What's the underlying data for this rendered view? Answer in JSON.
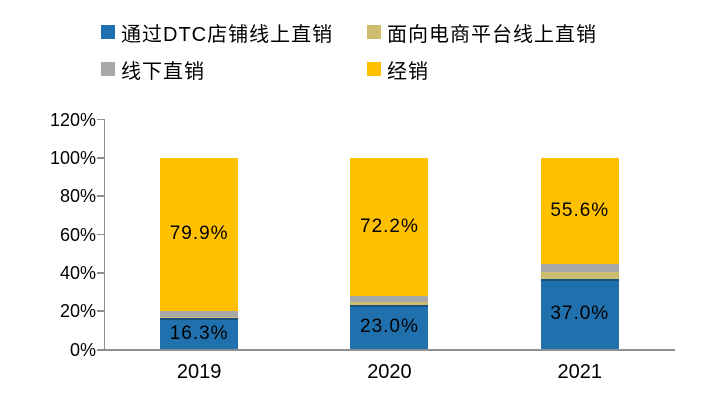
{
  "chart_data": {
    "type": "bar",
    "stacked": true,
    "title": "",
    "categories": [
      "2019",
      "2020",
      "2021"
    ],
    "series": [
      {
        "name": "通过DTC店铺线上直销",
        "color": "#2070ad",
        "values": [
          16.3,
          23.0,
          37.0
        ],
        "data_labels": [
          "16.3%",
          "23.0%",
          "37.0%"
        ]
      },
      {
        "name": "面向电商平台线上直销",
        "color": "#ccbd71",
        "values": [
          0.9,
          1.8,
          3.4
        ],
        "data_labels": [
          "",
          "",
          ""
        ]
      },
      {
        "name": "线下直销",
        "color": "#a9a9a9",
        "values": [
          2.9,
          3.0,
          4.0
        ],
        "data_labels": [
          "",
          "",
          ""
        ]
      },
      {
        "name": "经销",
        "color": "#ffc000",
        "values": [
          79.9,
          72.2,
          55.6
        ],
        "data_labels": [
          "79.9%",
          "72.2%",
          "55.6%"
        ]
      }
    ],
    "y_axis": {
      "min": 0,
      "max": 120,
      "tick_step": 20,
      "tick_labels": [
        "0%",
        "20%",
        "40%",
        "60%",
        "80%",
        "100%",
        "120%"
      ]
    },
    "x_axis": {
      "tick_labels": [
        "2019",
        "2020",
        "2021"
      ]
    },
    "legend_position": "top",
    "grid": false,
    "axis_color": "#8f8f8f",
    "text_color": "#000000",
    "background_color": "#ffffff"
  }
}
